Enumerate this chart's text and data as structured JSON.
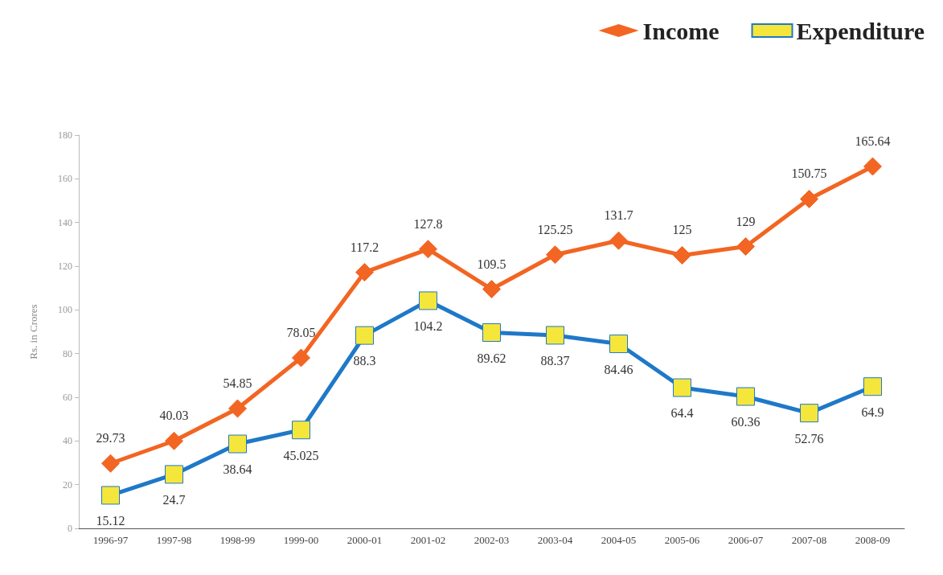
{
  "chart_data": {
    "type": "line",
    "ylabel": "Rs. in Crores",
    "categories": [
      "1996-97",
      "1997-98",
      "1998-99",
      "1999-00",
      "2000-01",
      "2001-02",
      "2002-03",
      "2003-04",
      "2004-05",
      "2005-06",
      "2006-07",
      "2007-08",
      "2008-09"
    ],
    "series": [
      {
        "name": "Income",
        "color": "#f26522",
        "marker": "diamond",
        "values": [
          29.73,
          40.03,
          54.85,
          78.05,
          117.2,
          127.8,
          109.5,
          125.25,
          131.7,
          125,
          129,
          150.75,
          165.64
        ]
      },
      {
        "name": "Expenditure",
        "color": "#1f78c8",
        "marker": "square",
        "values": [
          15.12,
          24.7,
          38.64,
          45.025,
          88.3,
          104.2,
          89.62,
          88.37,
          84.46,
          64.4,
          60.36,
          52.76,
          64.9
        ]
      }
    ],
    "ylim": [
      0,
      180
    ],
    "yticks": [
      0,
      20,
      40,
      60,
      80,
      100,
      120,
      140,
      160,
      180
    ],
    "data_labels": true,
    "legend": "top right",
    "grid": false,
    "line_style": "solid"
  }
}
